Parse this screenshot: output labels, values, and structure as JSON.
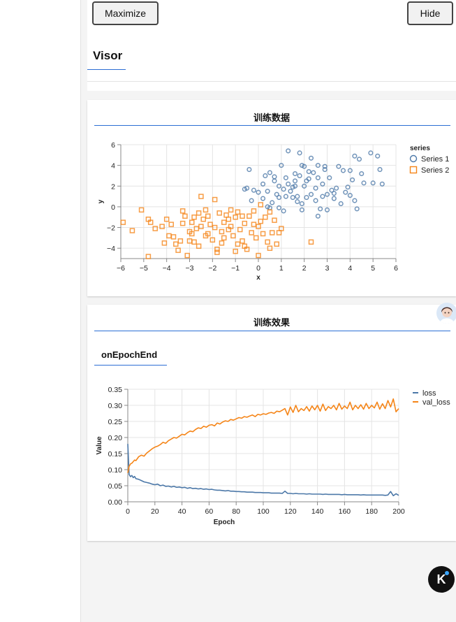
{
  "buttons": {
    "maximize": "Maximize",
    "hide": "Hide"
  },
  "visor": {
    "title": "Visor"
  },
  "scatter_card": {
    "title": "训练数据"
  },
  "training_card": {
    "title": "训练效果",
    "tab": "onEpochEnd"
  },
  "colors": {
    "series1": "#4c78a8",
    "series2": "#f58518",
    "accent": "#2c6ed4"
  },
  "icons": {
    "avatar": "assistant-avatar-icon",
    "fab": "k-logo-icon"
  },
  "fab_label": "K",
  "chart_data": [
    {
      "type": "scatter",
      "title": "",
      "xlabel": "x",
      "ylabel": "y",
      "xlim": [
        -6,
        6
      ],
      "ylim": [
        -5,
        6
      ],
      "xticks": [
        -6,
        -5,
        -4,
        -3,
        -2,
        -1,
        0,
        1,
        2,
        3,
        4,
        5,
        6
      ],
      "yticks": [
        -4,
        -2,
        0,
        2,
        4,
        6
      ],
      "grid": true,
      "legend": {
        "title": "series",
        "placement": "right"
      },
      "series": [
        {
          "name": "Series 1",
          "marker": "circle",
          "points": [
            [
              1.3,
              5.4
            ],
            [
              1.8,
              5.2
            ],
            [
              2.3,
              4.7
            ],
            [
              2.0,
              3.9
            ],
            [
              2.6,
              4.0
            ],
            [
              2.9,
              3.6
            ],
            [
              3.5,
              3.9
            ],
            [
              3.7,
              3.5
            ],
            [
              4.0,
              3.5
            ],
            [
              4.2,
              4.9
            ],
            [
              4.4,
              4.6
            ],
            [
              4.9,
              5.2
            ],
            [
              5.2,
              4.9
            ],
            [
              1.0,
              4.0
            ],
            [
              1.6,
              3.2
            ],
            [
              1.8,
              3.0
            ],
            [
              2.1,
              2.5
            ],
            [
              2.2,
              2.7
            ],
            [
              2.4,
              3.3
            ],
            [
              2.8,
              2.2
            ],
            [
              3.1,
              2.8
            ],
            [
              3.4,
              1.8
            ],
            [
              3.9,
              1.9
            ],
            [
              4.1,
              2.6
            ],
            [
              4.5,
              3.2
            ],
            [
              4.6,
              2.3
            ],
            [
              5.0,
              2.3
            ],
            [
              5.3,
              3.6
            ],
            [
              5.4,
              2.2
            ],
            [
              0.3,
              3.0
            ],
            [
              0.5,
              3.3
            ],
            [
              0.7,
              2.5
            ],
            [
              0.9,
              2.0
            ],
            [
              1.1,
              1.7
            ],
            [
              0.8,
              1.2
            ],
            [
              1.2,
              1.0
            ],
            [
              1.5,
              0.9
            ],
            [
              1.7,
              0.5
            ],
            [
              1.9,
              0.3
            ],
            [
              2.1,
              0.9
            ],
            [
              2.3,
              1.2
            ],
            [
              2.5,
              0.6
            ],
            [
              2.8,
              1.0
            ],
            [
              3.0,
              1.2
            ],
            [
              3.3,
              0.8
            ],
            [
              3.6,
              0.3
            ],
            [
              4.0,
              1.1
            ],
            [
              4.3,
              -0.2
            ],
            [
              -0.4,
              3.6
            ],
            [
              -0.6,
              1.7
            ],
            [
              -0.2,
              1.6
            ],
            [
              0.0,
              1.4
            ],
            [
              0.2,
              0.8
            ],
            [
              0.4,
              1.5
            ],
            [
              0.6,
              0.4
            ],
            [
              0.9,
              -0.1
            ],
            [
              1.1,
              -0.4
            ],
            [
              0.5,
              -0.1
            ],
            [
              1.6,
              2.0
            ],
            [
              1.4,
              1.5
            ],
            [
              2.7,
              -0.2
            ],
            [
              3.2,
              1.6
            ],
            [
              2.6,
              -0.9
            ],
            [
              1.9,
              -0.3
            ],
            [
              0.7,
              2.9
            ],
            [
              1.3,
              2.2
            ],
            [
              1.9,
              4.0
            ],
            [
              2.2,
              3.4
            ],
            [
              2.9,
              3.9
            ],
            [
              3.3,
              1.3
            ],
            [
              1.5,
              1.9
            ],
            [
              0.2,
              2.2
            ],
            [
              -0.3,
              0.6
            ],
            [
              -0.5,
              1.8
            ],
            [
              1.6,
              2.5
            ],
            [
              2.6,
              2.8
            ],
            [
              4.2,
              0.6
            ],
            [
              3.8,
              1.4
            ],
            [
              0.4,
              0.0
            ],
            [
              1.2,
              2.8
            ],
            [
              2.0,
              2.0
            ],
            [
              2.5,
              1.8
            ],
            [
              1.7,
              1.0
            ],
            [
              0.9,
              0.9
            ],
            [
              3.0,
              -0.3
            ]
          ]
        },
        {
          "name": "Series 2",
          "marker": "square",
          "points": [
            [
              -5.9,
              -1.5
            ],
            [
              -5.1,
              -0.3
            ],
            [
              -4.8,
              -1.2
            ],
            [
              -4.7,
              -1.5
            ],
            [
              -4.5,
              -2.1
            ],
            [
              -4.2,
              -1.9
            ],
            [
              -4.0,
              -1.2
            ],
            [
              -3.9,
              -2.8
            ],
            [
              -3.7,
              -2.9
            ],
            [
              -3.6,
              -3.6
            ],
            [
              -3.4,
              -3.3
            ],
            [
              -3.3,
              -0.4
            ],
            [
              -3.2,
              -0.9
            ],
            [
              -3.0,
              -2.4
            ],
            [
              -2.9,
              -1.5
            ],
            [
              -2.8,
              -3.4
            ],
            [
              -2.7,
              -2.1
            ],
            [
              -2.6,
              -0.6
            ],
            [
              -2.5,
              -1.9
            ],
            [
              -2.4,
              -1.2
            ],
            [
              -2.3,
              -2.8
            ],
            [
              -2.2,
              -0.9
            ],
            [
              -2.1,
              -1.7
            ],
            [
              -2.0,
              -3.2
            ],
            [
              -1.9,
              -2.0
            ],
            [
              -1.8,
              -4.1
            ],
            [
              -1.7,
              -0.6
            ],
            [
              -1.6,
              -2.4
            ],
            [
              -1.5,
              -3.0
            ],
            [
              -1.4,
              -0.8
            ],
            [
              -1.3,
              -1.2
            ],
            [
              -1.2,
              -1.9
            ],
            [
              -1.1,
              -2.8
            ],
            [
              -1.0,
              -1.0
            ],
            [
              -0.9,
              -0.5
            ],
            [
              -0.8,
              -2.2
            ],
            [
              -0.7,
              -3.3
            ],
            [
              -0.6,
              -1.6
            ],
            [
              -0.5,
              -4.1
            ],
            [
              -0.4,
              -0.9
            ],
            [
              -0.3,
              -2.5
            ],
            [
              -0.2,
              -1.7
            ],
            [
              -0.1,
              -3.0
            ],
            [
              0.0,
              -1.9
            ],
            [
              0.1,
              -1.4
            ],
            [
              0.2,
              -2.6
            ],
            [
              0.3,
              -1.0
            ],
            [
              0.4,
              -3.4
            ],
            [
              0.5,
              -0.5
            ],
            [
              0.6,
              -2.5
            ],
            [
              0.7,
              -1.3
            ],
            [
              0.8,
              -3.6
            ],
            [
              1.0,
              -2.1
            ],
            [
              -5.5,
              -2.3
            ],
            [
              -4.8,
              -4.8
            ],
            [
              -3.5,
              -4.2
            ],
            [
              -3.1,
              -4.7
            ],
            [
              -2.5,
              1.0
            ],
            [
              -1.9,
              0.7
            ],
            [
              -1.2,
              -0.3
            ],
            [
              0.0,
              -4.7
            ],
            [
              2.3,
              -3.4
            ],
            [
              -2.8,
              -1.0
            ],
            [
              -3.0,
              -3.3
            ],
            [
              -2.2,
              -2.6
            ],
            [
              -1.5,
              -1.5
            ],
            [
              -0.7,
              -0.9
            ],
            [
              -1.8,
              -4.4
            ],
            [
              -2.6,
              -3.8
            ],
            [
              -4.1,
              -3.5
            ],
            [
              -3.8,
              -1.7
            ],
            [
              -0.9,
              -3.6
            ],
            [
              -1.3,
              -2.2
            ],
            [
              -2.3,
              -0.3
            ],
            [
              -1.0,
              -4.3
            ],
            [
              0.1,
              0.2
            ],
            [
              0.5,
              -4.0
            ],
            [
              0.9,
              -2.5
            ],
            [
              -0.2,
              -0.4
            ],
            [
              -3.3,
              -1.6
            ],
            [
              -2.9,
              -2.6
            ],
            [
              -1.6,
              -3.5
            ],
            [
              -0.6,
              -3.8
            ]
          ]
        }
      ]
    },
    {
      "type": "line",
      "title": "",
      "xlabel": "Epoch",
      "ylabel": "Value",
      "xlim": [
        0,
        200
      ],
      "ylim": [
        0,
        0.35
      ],
      "xticks": [
        0,
        20,
        40,
        60,
        80,
        100,
        120,
        140,
        160,
        180,
        200
      ],
      "yticks": [
        0,
        0.05,
        0.1,
        0.15,
        0.2,
        0.25,
        0.3,
        0.35
      ],
      "grid": true,
      "legend": {
        "placement": "top-right"
      },
      "x": [
        0,
        1,
        2,
        3,
        4,
        5,
        6,
        8,
        10,
        12,
        14,
        16,
        18,
        20,
        22,
        24,
        26,
        28,
        30,
        32,
        34,
        36,
        38,
        40,
        42,
        44,
        46,
        48,
        50,
        52,
        54,
        56,
        58,
        60,
        62,
        64,
        66,
        68,
        70,
        72,
        74,
        76,
        78,
        80,
        82,
        84,
        86,
        88,
        90,
        92,
        94,
        96,
        98,
        100,
        102,
        104,
        106,
        108,
        110,
        112,
        114,
        116,
        118,
        120,
        122,
        124,
        126,
        128,
        130,
        132,
        134,
        136,
        138,
        140,
        142,
        144,
        146,
        148,
        150,
        152,
        154,
        156,
        158,
        160,
        162,
        164,
        166,
        168,
        170,
        172,
        174,
        176,
        178,
        180,
        182,
        184,
        186,
        188,
        190,
        192,
        194,
        196,
        198,
        200
      ],
      "series": [
        {
          "name": "loss",
          "values": [
            0.18,
            0.085,
            0.078,
            0.082,
            0.075,
            0.079,
            0.072,
            0.07,
            0.066,
            0.062,
            0.06,
            0.058,
            0.055,
            0.053,
            0.055,
            0.05,
            0.052,
            0.048,
            0.049,
            0.046,
            0.048,
            0.045,
            0.046,
            0.044,
            0.045,
            0.042,
            0.044,
            0.041,
            0.042,
            0.04,
            0.041,
            0.039,
            0.04,
            0.038,
            0.039,
            0.037,
            0.036,
            0.036,
            0.035,
            0.034,
            0.035,
            0.033,
            0.033,
            0.032,
            0.032,
            0.031,
            0.031,
            0.03,
            0.03,
            0.03,
            0.029,
            0.029,
            0.029,
            0.028,
            0.028,
            0.028,
            0.027,
            0.027,
            0.027,
            0.027,
            0.026,
            0.033,
            0.026,
            0.026,
            0.025,
            0.026,
            0.025,
            0.025,
            0.025,
            0.024,
            0.025,
            0.024,
            0.024,
            0.024,
            0.024,
            0.023,
            0.024,
            0.023,
            0.023,
            0.023,
            0.023,
            0.023,
            0.022,
            0.023,
            0.022,
            0.022,
            0.022,
            0.022,
            0.022,
            0.021,
            0.022,
            0.021,
            0.021,
            0.021,
            0.021,
            0.021,
            0.021,
            0.021,
            0.02,
            0.021,
            0.032,
            0.019,
            0.025,
            0.02
          ]
        },
        {
          "name": "val_loss",
          "values": [
            0.09,
            0.11,
            0.118,
            0.12,
            0.125,
            0.13,
            0.128,
            0.14,
            0.145,
            0.142,
            0.152,
            0.158,
            0.165,
            0.17,
            0.173,
            0.178,
            0.185,
            0.182,
            0.19,
            0.195,
            0.2,
            0.198,
            0.204,
            0.21,
            0.208,
            0.215,
            0.22,
            0.218,
            0.225,
            0.23,
            0.228,
            0.235,
            0.232,
            0.238,
            0.24,
            0.236,
            0.245,
            0.242,
            0.248,
            0.252,
            0.25,
            0.256,
            0.254,
            0.258,
            0.262,
            0.26,
            0.265,
            0.263,
            0.267,
            0.27,
            0.265,
            0.272,
            0.27,
            0.274,
            0.272,
            0.276,
            0.278,
            0.275,
            0.282,
            0.28,
            0.285,
            0.29,
            0.27,
            0.295,
            0.278,
            0.3,
            0.28,
            0.29,
            0.284,
            0.296,
            0.282,
            0.298,
            0.286,
            0.3,
            0.282,
            0.304,
            0.284,
            0.296,
            0.29,
            0.3,
            0.286,
            0.306,
            0.288,
            0.298,
            0.29,
            0.31,
            0.286,
            0.3,
            0.29,
            0.302,
            0.288,
            0.306,
            0.29,
            0.3,
            0.292,
            0.31,
            0.288,
            0.305,
            0.29,
            0.315,
            0.295,
            0.32,
            0.28,
            0.29
          ]
        }
      ]
    }
  ]
}
